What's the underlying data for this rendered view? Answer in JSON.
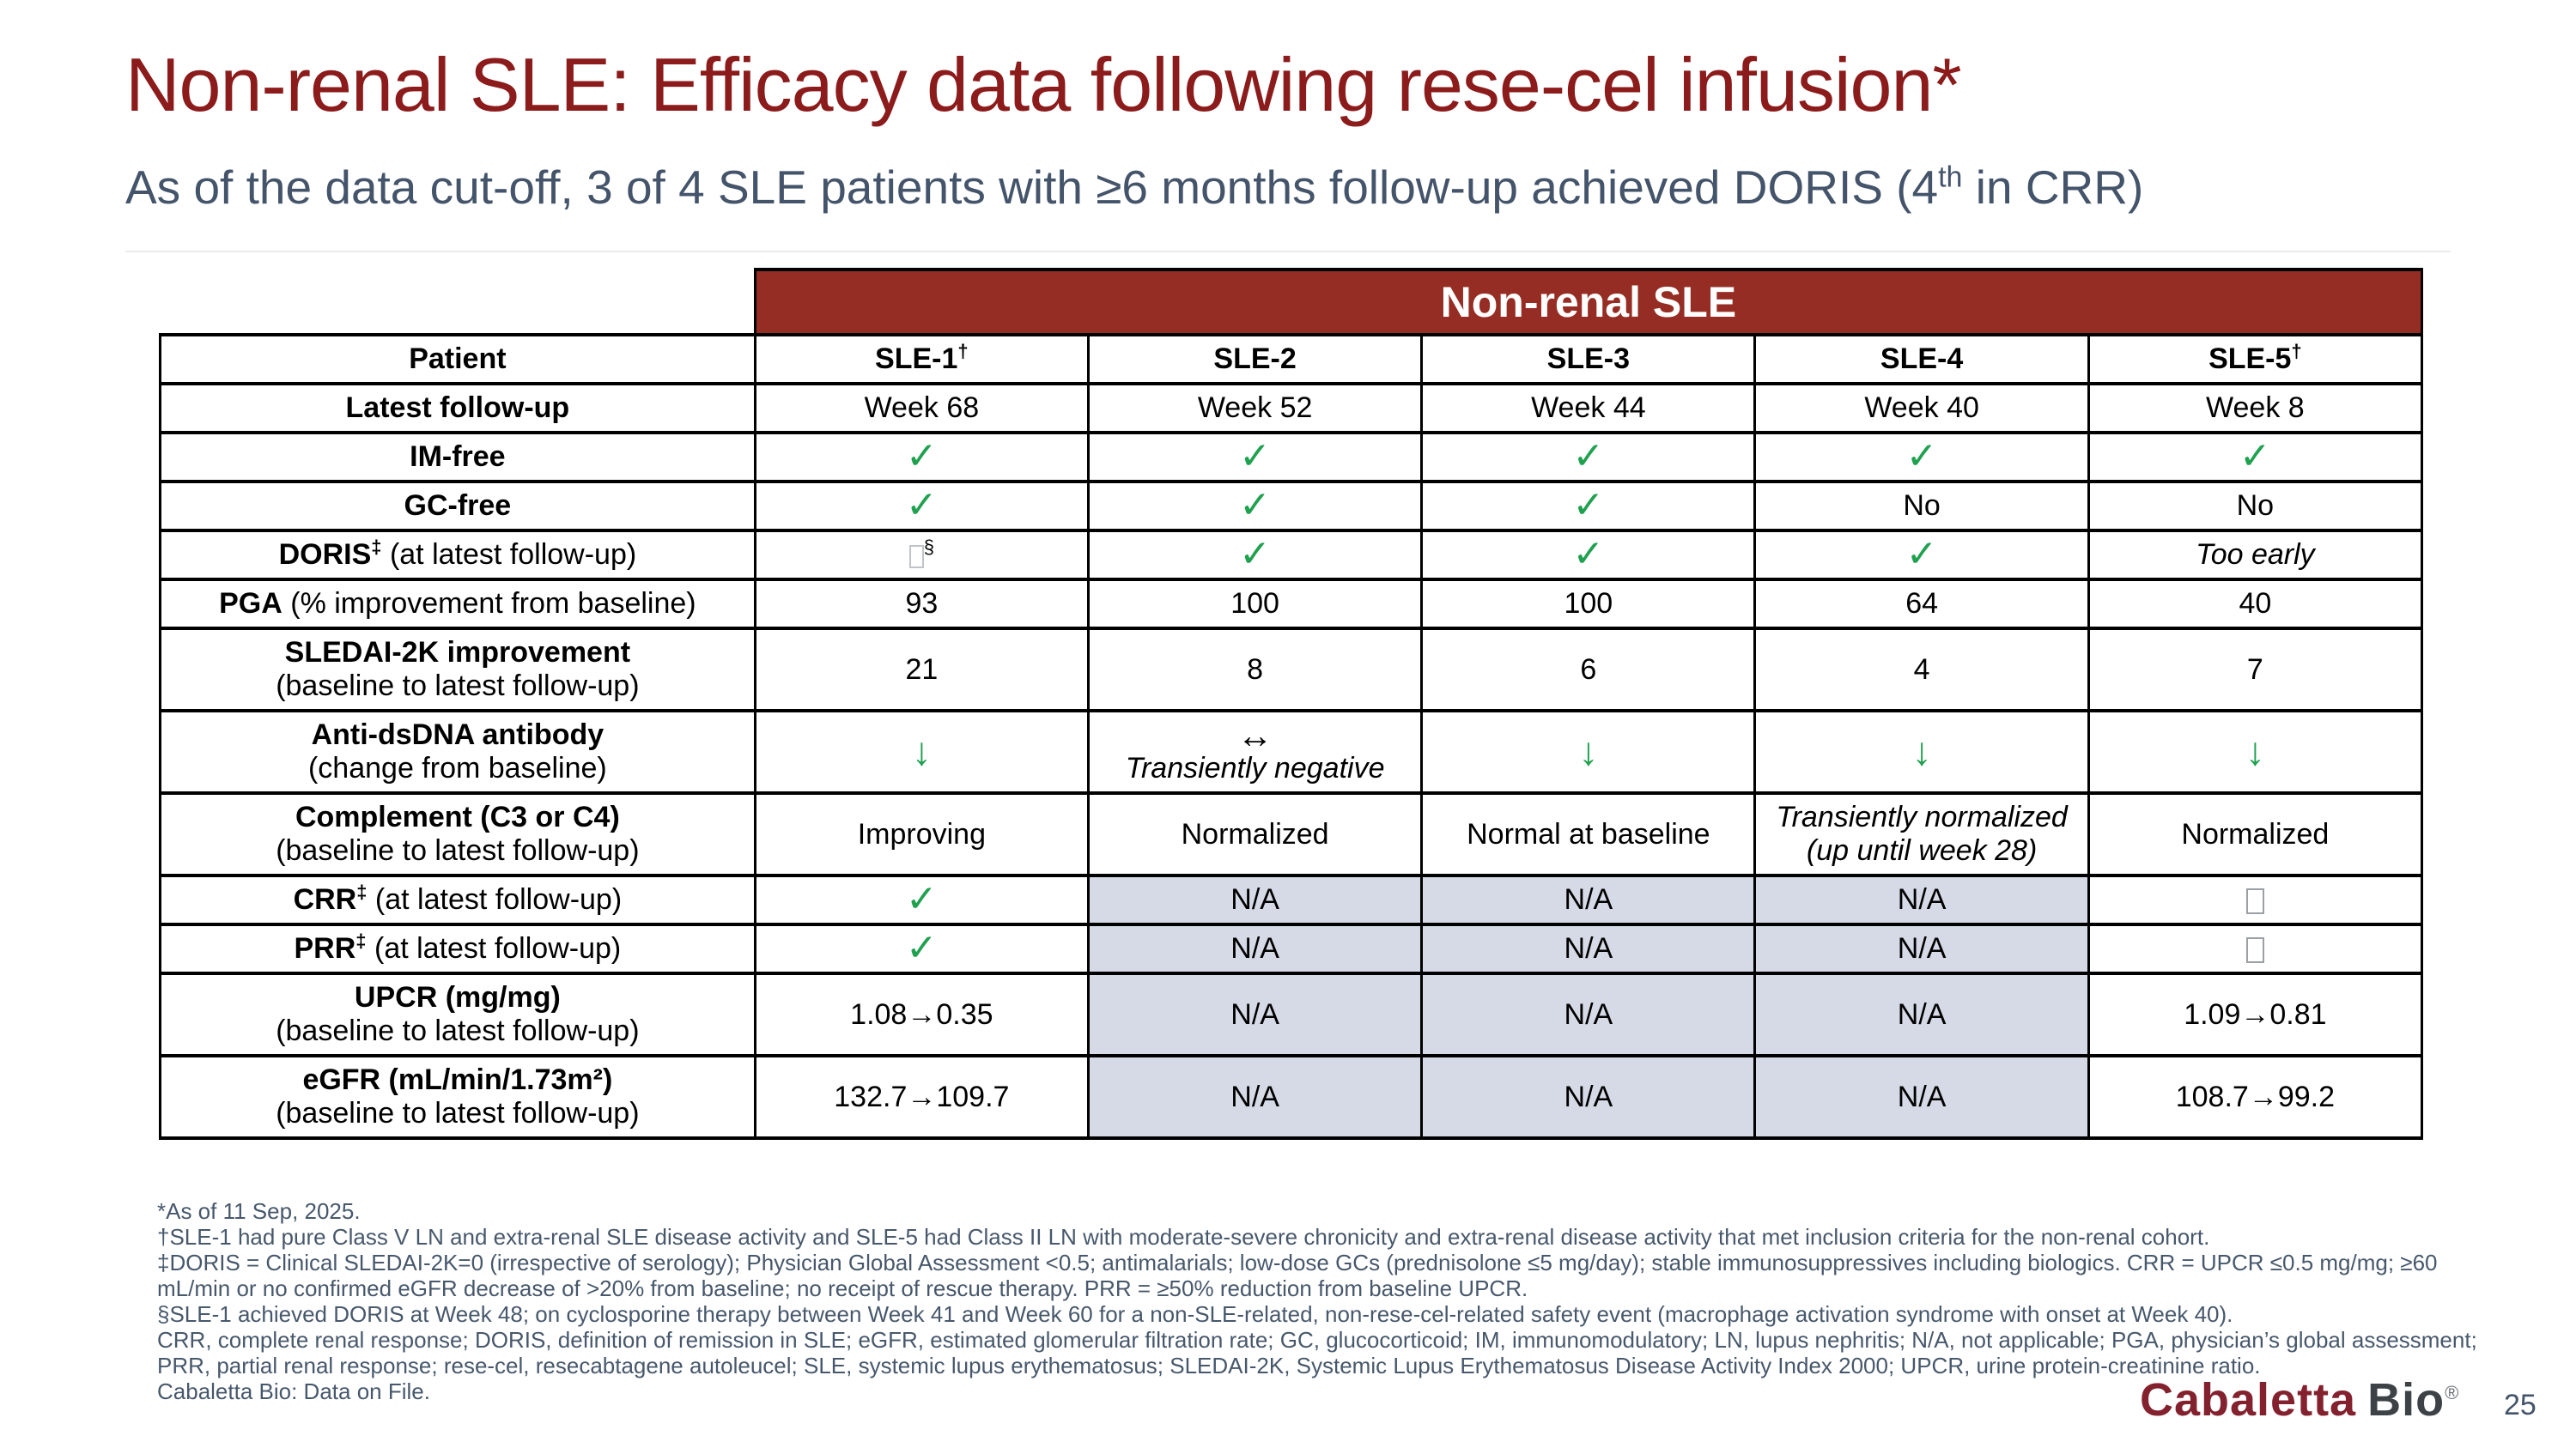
{
  "header": {
    "title": "Non-renal SLE: Efficacy data following rese-cel infusion*",
    "subtitle_pre": "As of the data cut-off, 3 of 4 SLE patients with ≥6 months follow-up achieved DORIS (4",
    "subtitle_sup": "th",
    "subtitle_post": " in CRR)"
  },
  "colors": {
    "title_red": "#8c1b1b",
    "banner_red": "#962d24",
    "green": "#1fa14f",
    "na_bg": "#d5dae6",
    "text_slate": "#44546a",
    "footnote_slate": "#47586c",
    "logo_red": "#84212e",
    "logo_gray": "#3d4247"
  },
  "icons": {
    "check": "✓",
    "down_arrow": "↓",
    "lr_arrow": "↔"
  },
  "table": {
    "banner": "Non-renal SLE",
    "na_text": "N/A",
    "header_row": {
      "label": "Patient",
      "cells": [
        {
          "text": "SLE-1",
          "sup": "†"
        },
        {
          "text": "SLE-2",
          "sup": ""
        },
        {
          "text": "SLE-3",
          "sup": ""
        },
        {
          "text": "SLE-4",
          "sup": ""
        },
        {
          "text": "SLE-5",
          "sup": "†"
        }
      ]
    },
    "rows": [
      {
        "name": "latest-follow-up",
        "label": {
          "bold": "Latest follow-up",
          "sup": "",
          "rest": "",
          "line2": ""
        },
        "cells": [
          {
            "type": "text",
            "text": "Week 68"
          },
          {
            "type": "text",
            "text": "Week 52"
          },
          {
            "type": "text",
            "text": "Week 44"
          },
          {
            "type": "text",
            "text": "Week 40"
          },
          {
            "type": "text",
            "text": "Week 8"
          }
        ]
      },
      {
        "name": "im-free",
        "label": {
          "bold": "IM-free",
          "sup": "",
          "rest": "",
          "line2": ""
        },
        "cells": [
          {
            "type": "check"
          },
          {
            "type": "check"
          },
          {
            "type": "check"
          },
          {
            "type": "check"
          },
          {
            "type": "check"
          }
        ]
      },
      {
        "name": "gc-free",
        "label": {
          "bold": "GC-free",
          "sup": "",
          "rest": "",
          "line2": ""
        },
        "cells": [
          {
            "type": "check"
          },
          {
            "type": "check"
          },
          {
            "type": "check"
          },
          {
            "type": "text",
            "text": "No"
          },
          {
            "type": "text",
            "text": "No"
          }
        ]
      },
      {
        "name": "doris",
        "label": {
          "bold": "DORIS",
          "sup": "‡",
          "rest": " (at latest follow-up)",
          "line2": ""
        },
        "cells": [
          {
            "type": "tofu",
            "faint": true,
            "sup": "§"
          },
          {
            "type": "check"
          },
          {
            "type": "check"
          },
          {
            "type": "check"
          },
          {
            "type": "italic",
            "text": "Too early",
            "line2": ""
          }
        ]
      },
      {
        "name": "pga",
        "label": {
          "bold": "PGA",
          "sup": "",
          "rest": " (% improvement from baseline)",
          "line2": ""
        },
        "cells": [
          {
            "type": "text",
            "text": "93"
          },
          {
            "type": "text",
            "text": "100"
          },
          {
            "type": "text",
            "text": "100"
          },
          {
            "type": "text",
            "text": "64"
          },
          {
            "type": "text",
            "text": "40"
          }
        ]
      },
      {
        "name": "sledai-2k",
        "label": {
          "bold": "SLEDAI-2K improvement",
          "sup": "",
          "rest": "",
          "line2": "(baseline to latest follow-up)"
        },
        "cells": [
          {
            "type": "text",
            "text": "21"
          },
          {
            "type": "text",
            "text": "8"
          },
          {
            "type": "text",
            "text": "6"
          },
          {
            "type": "text",
            "text": "4"
          },
          {
            "type": "text",
            "text": "7"
          }
        ]
      },
      {
        "name": "anti-dsdna",
        "label": {
          "bold": "Anti-dsDNA antibody",
          "sup": "",
          "rest": "",
          "line2": "(change from baseline)"
        },
        "cells": [
          {
            "type": "down"
          },
          {
            "type": "lr",
            "text": "Transiently negative"
          },
          {
            "type": "down"
          },
          {
            "type": "down"
          },
          {
            "type": "down"
          }
        ]
      },
      {
        "name": "complement",
        "label": {
          "bold": "Complement (C3 or C4)",
          "sup": "",
          "rest": "",
          "line2": "(baseline to latest follow-up)"
        },
        "cells": [
          {
            "type": "text",
            "text": "Improving"
          },
          {
            "type": "text",
            "text": "Normalized"
          },
          {
            "type": "text",
            "text": "Normal at baseline"
          },
          {
            "type": "italic",
            "text": "Transiently normalized",
            "line2": "(up until week 28)"
          },
          {
            "type": "text",
            "text": "Normalized"
          }
        ]
      },
      {
        "name": "crr",
        "label": {
          "bold": "CRR",
          "sup": "‡",
          "rest": " (at latest follow-up)",
          "line2": ""
        },
        "cells": [
          {
            "type": "check"
          },
          {
            "type": "na"
          },
          {
            "type": "na"
          },
          {
            "type": "na"
          },
          {
            "type": "tofu"
          }
        ]
      },
      {
        "name": "prr",
        "label": {
          "bold": "PRR",
          "sup": "‡",
          "rest": " (at latest follow-up)",
          "line2": ""
        },
        "cells": [
          {
            "type": "check"
          },
          {
            "type": "na"
          },
          {
            "type": "na"
          },
          {
            "type": "na"
          },
          {
            "type": "tofu"
          }
        ]
      },
      {
        "name": "upcr",
        "label": {
          "bold": "UPCR (mg/mg)",
          "sup": "",
          "rest": "",
          "line2": "(baseline to latest follow-up)"
        },
        "cells": [
          {
            "type": "text",
            "text": "1.08→0.35"
          },
          {
            "type": "na"
          },
          {
            "type": "na"
          },
          {
            "type": "na"
          },
          {
            "type": "text",
            "text": "1.09→0.81"
          }
        ]
      },
      {
        "name": "egfr",
        "label": {
          "bold": "eGFR (mL/min/1.73m²)",
          "sup": "",
          "rest": "",
          "line2": "(baseline to latest follow-up)"
        },
        "cells": [
          {
            "type": "text",
            "text": "132.7→109.7"
          },
          {
            "type": "na"
          },
          {
            "type": "na"
          },
          {
            "type": "na"
          },
          {
            "type": "text",
            "text": "108.7→99.2"
          }
        ]
      }
    ]
  },
  "footnotes": [
    "*As of 11 Sep, 2025.",
    "†SLE-1 had pure Class V LN and extra-renal SLE disease activity and SLE-5 had Class II LN with moderate-severe chronicity and extra-renal disease activity that met inclusion criteria for the non-renal cohort.",
    "‡DORIS = Clinical SLEDAI-2K=0 (irrespective of serology); Physician Global Assessment <0.5; antimalarials; low-dose GCs (prednisolone ≤5 mg/day); stable immunosuppressives including biologics. CRR = UPCR ≤0.5 mg/mg; ≥60 mL/min or no confirmed eGFR decrease of >20% from baseline; no receipt of rescue therapy. PRR = ≥50% reduction from baseline UPCR.",
    "§SLE-1 achieved DORIS at Week 48; on cyclosporine therapy between Week 41 and Week 60 for a non-SLE-related, non-rese-cel-related safety event (macrophage activation syndrome with onset at Week 40).",
    "CRR, complete renal response; DORIS, definition of remission in SLE; eGFR, estimated glomerular filtration rate; GC, glucocorticoid; IM, immunomodulatory; LN, lupus nephritis; N/A, not applicable; PGA, physician’s global assessment; PRR, partial renal response; rese-cel, resecabtagene autoleucel; SLE, systemic lupus erythematosus; SLEDAI-2K, Systemic Lupus Erythematosus Disease Activity Index 2000; UPCR, urine protein-creatinine ratio.",
    "Cabaletta Bio: Data on File."
  ],
  "footer": {
    "logo_primary": "Cabaletta",
    "logo_secondary": "Bio",
    "logo_reg": "®",
    "page_number": "25"
  }
}
